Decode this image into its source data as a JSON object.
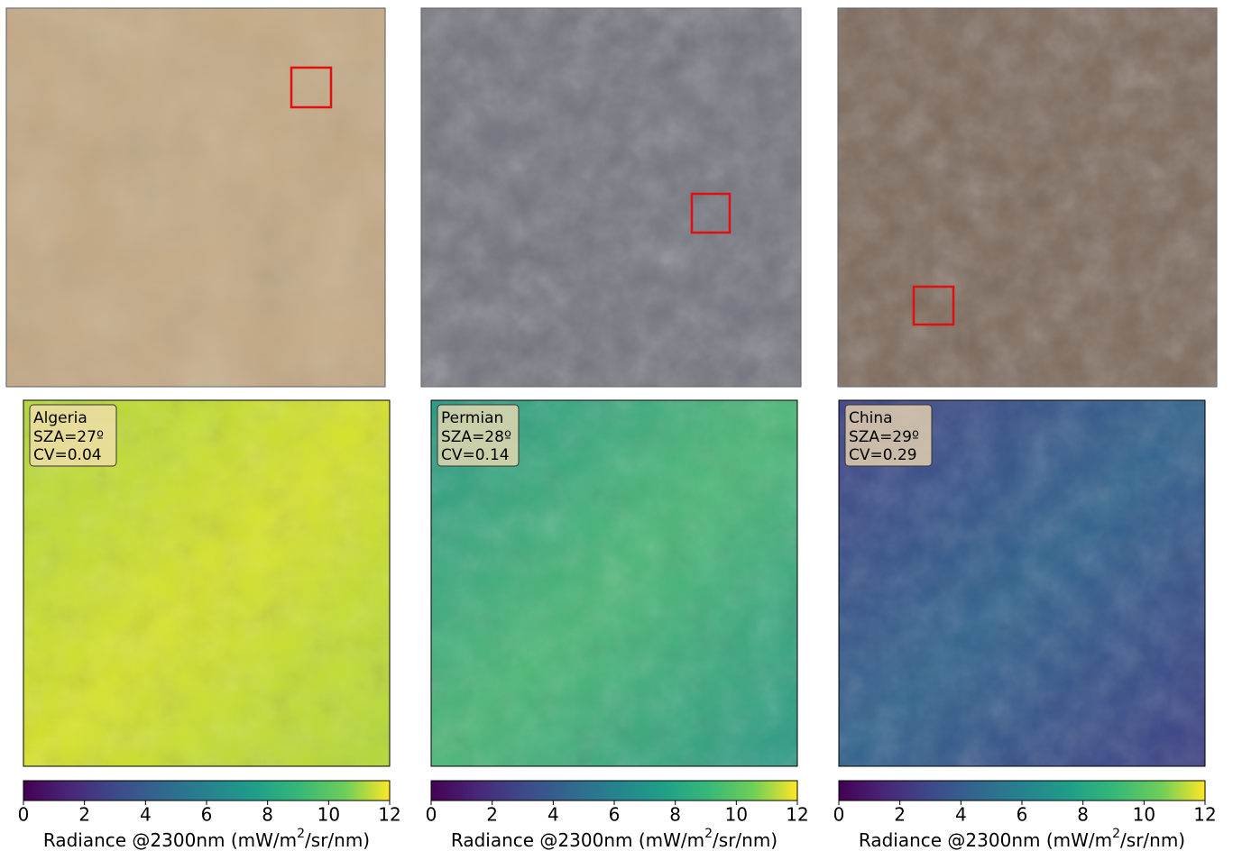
{
  "chart_data": [
    {
      "type": "heatmap",
      "site": "Algeria",
      "sza": "SZA=27º",
      "cv": "CV=0.04",
      "xlabel": [
        "Radiance @2300nm (mW/m",
        "2",
        "/sr/nm)"
      ],
      "colormap": "viridis",
      "xlim": [
        0,
        12
      ],
      "xticks": [
        0,
        2,
        4,
        6,
        8,
        10,
        12
      ]
    },
    {
      "type": "heatmap",
      "site": "Permian",
      "sza": "SZA=28º",
      "cv": "CV=0.14",
      "xlabel": [
        "Radiance @2300nm (mW/m",
        "2",
        "/sr/nm)"
      ],
      "colormap": "viridis",
      "xlim": [
        0,
        12
      ],
      "xticks": [
        0,
        2,
        4,
        6,
        8,
        10,
        12
      ]
    },
    {
      "type": "heatmap",
      "site": "China",
      "sza": "SZA=29º",
      "cv": "CV=0.29",
      "xlabel": [
        "Radiance @2300nm (mW/m",
        "2",
        "/sr/nm)"
      ],
      "colormap": "viridis",
      "xlim": [
        0,
        12
      ],
      "xticks": [
        0,
        2,
        4,
        6,
        8,
        10,
        12
      ]
    }
  ]
}
